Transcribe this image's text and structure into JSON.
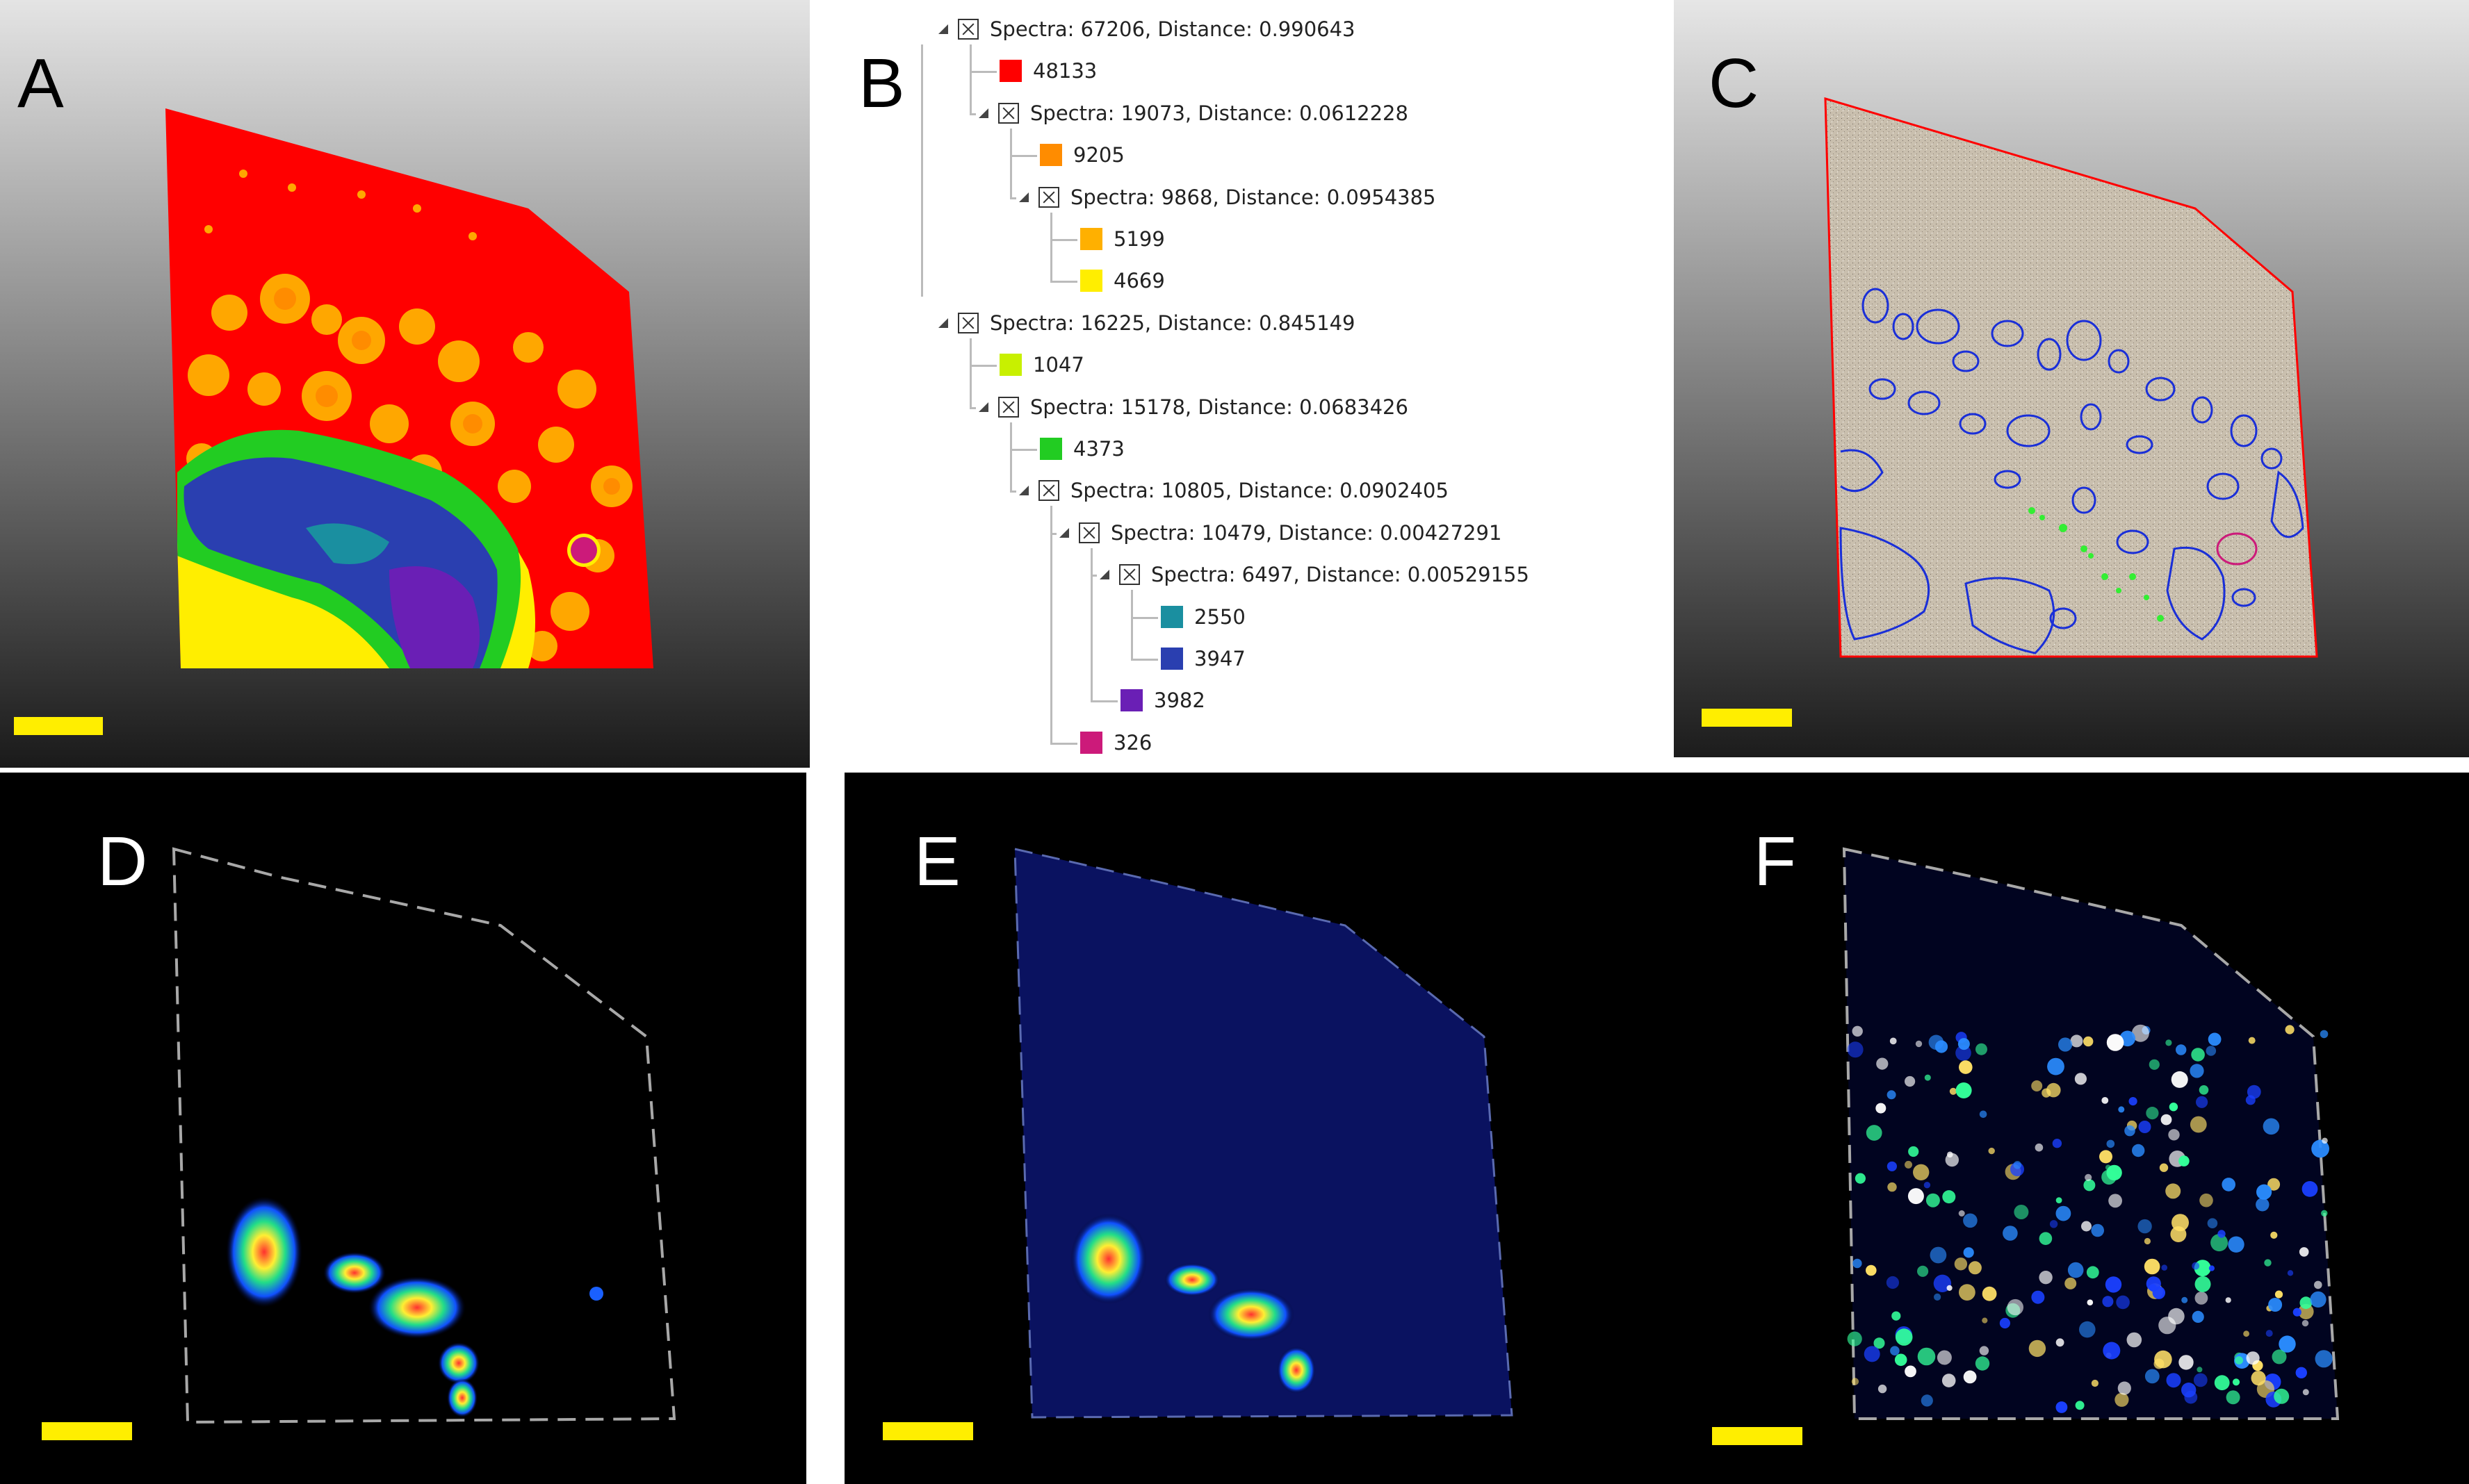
{
  "panels": {
    "a": {
      "letter": "A"
    },
    "b": {
      "letter": "B"
    },
    "c": {
      "letter": "C"
    },
    "d": {
      "letter": "D"
    },
    "e": {
      "letter": "E"
    },
    "f": {
      "letter": "F"
    }
  },
  "colors": {
    "scalebar": "#ffee00",
    "red": "#ff0000",
    "orange": "#ff8c00",
    "light_orange": "#ffb000",
    "yellow": "#ffee00",
    "lime": "#c8f000",
    "green": "#22cc22",
    "teal": "#1a8fa0",
    "blue": "#2a3fb0",
    "purple": "#6a1fb5",
    "magenta": "#cc1a7a"
  },
  "tree": {
    "nodes": [
      {
        "type": "branch",
        "level": 0,
        "text": "Spectra: 67206, Distance: 0.990643"
      },
      {
        "type": "leaf",
        "level": 1,
        "text": "48133",
        "color": "#ff0000"
      },
      {
        "type": "branch",
        "level": 1,
        "text": "Spectra: 19073, Distance: 0.0612228"
      },
      {
        "type": "leaf",
        "level": 2,
        "text": "9205",
        "color": "#ff8c00"
      },
      {
        "type": "branch",
        "level": 2,
        "text": "Spectra: 9868, Distance: 0.0954385"
      },
      {
        "type": "leaf",
        "level": 3,
        "text": "5199",
        "color": "#ffb000"
      },
      {
        "type": "leaf",
        "level": 3,
        "text": "4669",
        "color": "#ffee00"
      },
      {
        "type": "branch",
        "level": 0,
        "text": "Spectra: 16225, Distance: 0.845149"
      },
      {
        "type": "leaf",
        "level": 1,
        "text": "1047",
        "color": "#c8f000"
      },
      {
        "type": "branch",
        "level": 1,
        "text": "Spectra: 15178, Distance: 0.0683426"
      },
      {
        "type": "leaf",
        "level": 2,
        "text": "4373",
        "color": "#22cc22"
      },
      {
        "type": "branch",
        "level": 2,
        "text": "Spectra: 10805, Distance: 0.0902405"
      },
      {
        "type": "branch",
        "level": 3,
        "text": "Spectra: 10479, Distance: 0.00427291"
      },
      {
        "type": "branch",
        "level": 4,
        "text": "Spectra: 6497, Distance: 0.00529155"
      },
      {
        "type": "leaf",
        "level": 5,
        "text": "2550",
        "color": "#1a8fa0"
      },
      {
        "type": "leaf",
        "level": 5,
        "text": "3947",
        "color": "#2a3fb0"
      },
      {
        "type": "leaf",
        "level": 4,
        "text": "3982",
        "color": "#6a1fb5"
      },
      {
        "type": "leaf",
        "level": 3,
        "text": "326",
        "color": "#cc1a7a"
      }
    ]
  }
}
